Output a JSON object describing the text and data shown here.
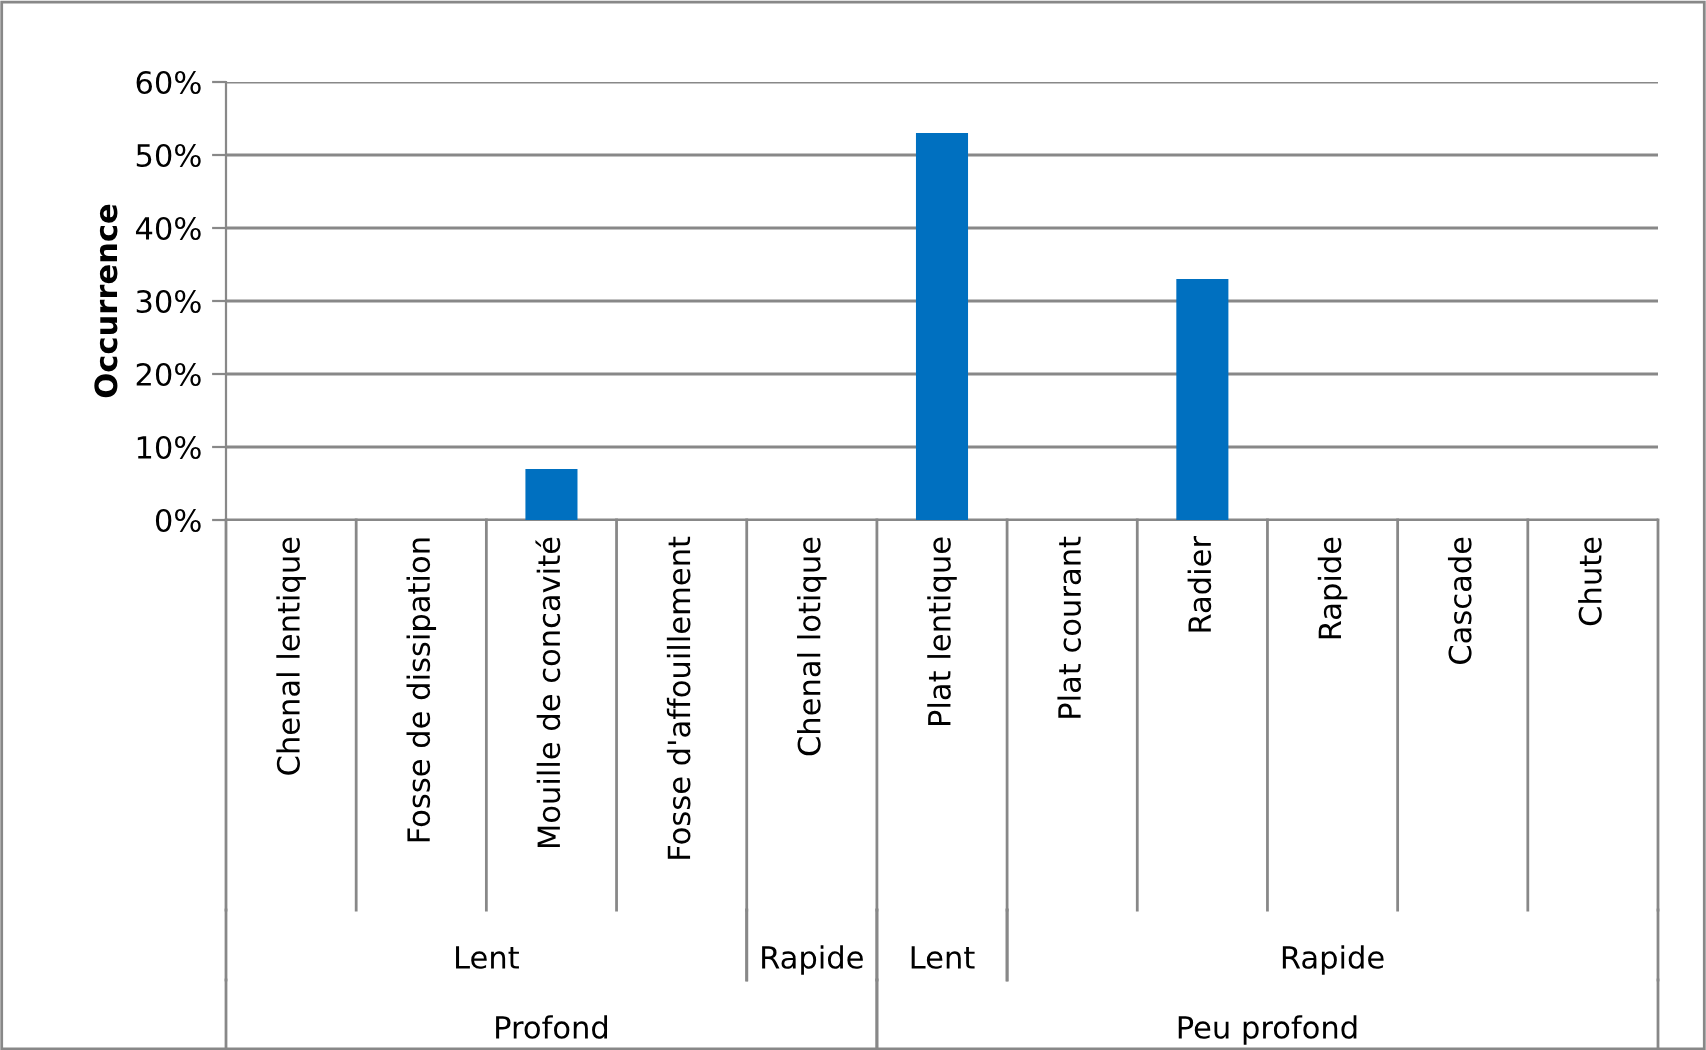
{
  "chart_data": {
    "type": "bar",
    "ylabel": "Occurrence",
    "categories": [
      "Chenal lentique",
      "Fosse de dissipation",
      "Mouille de concavité",
      "Fosse d'affouillement",
      "Chenal lotique",
      "Plat lentique",
      "Plat courant",
      "Radier",
      "Rapide",
      "Cascade",
      "Chute"
    ],
    "values": [
      0,
      0,
      7,
      0,
      0,
      53,
      0,
      33,
      0,
      0,
      0
    ],
    "color": "#0070c0",
    "ylim": [
      0,
      60
    ],
    "yticks": [
      {
        "value": 0,
        "label": "0%"
      },
      {
        "value": 10,
        "label": "10%"
      },
      {
        "value": 20,
        "label": "20%"
      },
      {
        "value": 30,
        "label": "30%"
      },
      {
        "value": 40,
        "label": "40%"
      },
      {
        "value": 50,
        "label": "50%"
      },
      {
        "value": 60,
        "label": "60%"
      }
    ],
    "grid": "y",
    "annotations": [
      "Lent",
      "Rapide",
      "Lent",
      "Rapide",
      "Profond",
      "Peu profond"
    ]
  }
}
